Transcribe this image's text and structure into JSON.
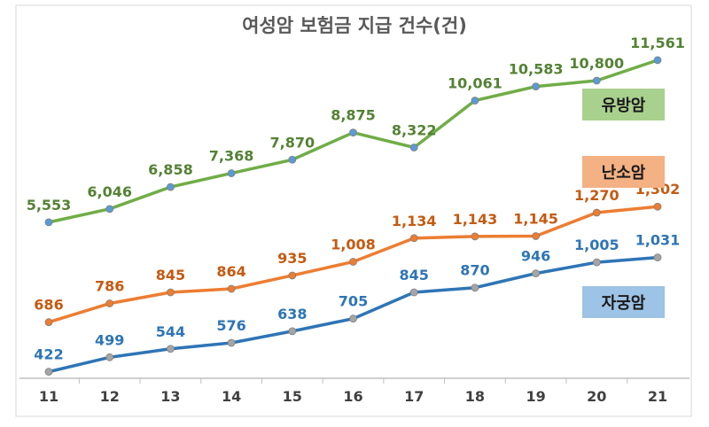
{
  "chart_data": {
    "type": "line",
    "title": "여성암 보험금 지급 건수(건)",
    "categories": [
      "11",
      "12",
      "13",
      "14",
      "15",
      "16",
      "17",
      "18",
      "19",
      "20",
      "21"
    ],
    "series": [
      {
        "name": "유방암",
        "axis": "secondary",
        "color": "#70ad47",
        "marker_color": "#5b9bd5",
        "label_color": "#548235",
        "legend_fill": "#a9d18e",
        "values": [
          5553,
          6046,
          6858,
          7368,
          7870,
          8875,
          8322,
          10061,
          10583,
          10800,
          11561
        ],
        "labels": [
          "5,553",
          "6,046",
          "6,858",
          "7,368",
          "7,870",
          "8,875",
          "8,322",
          "10,061",
          "10,583",
          "10,800",
          "11,561"
        ]
      },
      {
        "name": "난소암",
        "axis": "primary",
        "color": "#ed7d31",
        "marker_color": "#ed7d31",
        "label_color": "#c55a11",
        "legend_fill": "#f4b183",
        "values": [
          686,
          786,
          845,
          864,
          935,
          1008,
          1134,
          1143,
          1145,
          1270,
          1302
        ],
        "labels": [
          "686",
          "786",
          "845",
          "864",
          "935",
          "1,008",
          "1,134",
          "1,143",
          "1,145",
          "1,270",
          "1,302"
        ]
      },
      {
        "name": "자궁암",
        "axis": "primary",
        "color": "#2e75b6",
        "marker_color": "#a5a5a5",
        "label_color": "#2e75b6",
        "legend_fill": "#9dc3e6",
        "values": [
          422,
          499,
          544,
          576,
          638,
          705,
          845,
          870,
          946,
          1005,
          1031
        ],
        "labels": [
          "422",
          "499",
          "544",
          "576",
          "638",
          "705",
          "845",
          "870",
          "946",
          "1,005",
          "1,031"
        ]
      }
    ],
    "legend_placement": "right, inline boxes",
    "grid": false,
    "y_axis_visible": false
  }
}
